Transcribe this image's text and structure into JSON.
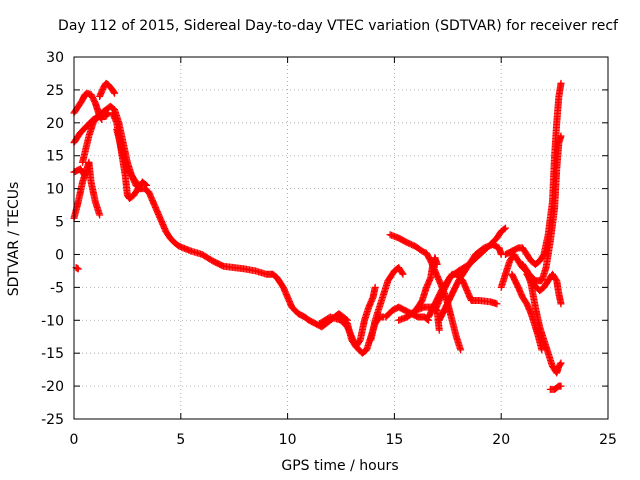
{
  "chart_data": {
    "type": "scatter",
    "title": "Day 112 of 2015, Sidereal Day-to-day VTEC variation (SDTVAR) for receiver recf",
    "xlabel": "GPS time / hours",
    "ylabel": "SDTVAR / TECUs",
    "xlim": [
      0,
      25
    ],
    "ylim": [
      -25,
      30
    ],
    "x_ticks": [
      0,
      5,
      10,
      15,
      20,
      25
    ],
    "y_ticks": [
      -25,
      -20,
      -15,
      -10,
      -5,
      0,
      5,
      10,
      15,
      20,
      25,
      30
    ],
    "grid": true,
    "marker": "+",
    "color": "#ff0000",
    "series": [
      {
        "name": "main",
        "points": [
          [
            0.1,
            -2
          ],
          [
            0.2,
            -2.2
          ]
        ]
      },
      {
        "name": "s1",
        "points": [
          [
            0,
            5.5
          ],
          [
            0.2,
            8
          ],
          [
            0.4,
            11
          ],
          [
            0.6,
            13
          ],
          [
            0.7,
            14
          ],
          [
            0.8,
            11
          ],
          [
            1.0,
            8
          ],
          [
            1.2,
            6
          ]
        ]
      },
      {
        "name": "s2",
        "points": [
          [
            0,
            12.5
          ],
          [
            0.3,
            13
          ],
          [
            0.5,
            12
          ]
        ]
      },
      {
        "name": "s3",
        "points": [
          [
            0,
            17
          ],
          [
            0.3,
            18.5
          ],
          [
            0.6,
            19.5
          ],
          [
            0.9,
            20.5
          ],
          [
            1.2,
            21
          ],
          [
            1.5,
            21
          ],
          [
            1.6,
            21.5
          ]
        ]
      },
      {
        "name": "s4",
        "points": [
          [
            0,
            21.5
          ],
          [
            0.2,
            22.5
          ],
          [
            0.4,
            23.5
          ],
          [
            0.5,
            24.2
          ],
          [
            0.6,
            24.5
          ],
          [
            0.8,
            24.3
          ],
          [
            1.0,
            23
          ],
          [
            1.1,
            22
          ],
          [
            1.2,
            21
          ],
          [
            1.3,
            20.5
          ]
        ]
      },
      {
        "name": "s5",
        "points": [
          [
            1.2,
            24
          ],
          [
            1.4,
            25.5
          ],
          [
            1.5,
            26
          ],
          [
            1.6,
            25.8
          ],
          [
            1.8,
            25
          ],
          [
            1.9,
            24.5
          ]
        ]
      },
      {
        "name": "s6",
        "points": [
          [
            0.4,
            14
          ],
          [
            0.7,
            18
          ],
          [
            0.9,
            20
          ],
          [
            1.1,
            21
          ],
          [
            1.3,
            21.5
          ],
          [
            1.5,
            22
          ],
          [
            1.7,
            22.5
          ],
          [
            1.9,
            22
          ],
          [
            2.1,
            20
          ],
          [
            2.3,
            17
          ],
          [
            2.5,
            14
          ],
          [
            2.7,
            12
          ],
          [
            2.9,
            10.5
          ],
          [
            3.1,
            10
          ],
          [
            3.3,
            10
          ],
          [
            3.5,
            9.5
          ],
          [
            3.7,
            8
          ],
          [
            3.9,
            6.5
          ],
          [
            4.1,
            5
          ],
          [
            4.3,
            3.5
          ],
          [
            4.5,
            2.5
          ],
          [
            4.7,
            1.8
          ],
          [
            4.9,
            1.3
          ],
          [
            5.1,
            1
          ],
          [
            5.5,
            0.5
          ],
          [
            6.0,
            0
          ],
          [
            6.5,
            -1
          ],
          [
            7.0,
            -1.8
          ],
          [
            7.5,
            -2
          ],
          [
            8.0,
            -2.2
          ],
          [
            8.5,
            -2.5
          ],
          [
            9.0,
            -3
          ],
          [
            9.3,
            -3
          ],
          [
            9.5,
            -3.5
          ],
          [
            9.8,
            -5
          ],
          [
            10.0,
            -6.5
          ],
          [
            10.2,
            -8
          ],
          [
            10.5,
            -9
          ],
          [
            10.8,
            -9.5
          ],
          [
            11.0,
            -10
          ],
          [
            11.3,
            -10.5
          ],
          [
            11.6,
            -11
          ],
          [
            11.8,
            -10.5
          ],
          [
            12.0,
            -10
          ],
          [
            12.2,
            -9.5
          ],
          [
            12.4,
            -9
          ],
          [
            12.6,
            -9.5
          ],
          [
            12.8,
            -10
          ]
        ]
      },
      {
        "name": "s7",
        "points": [
          [
            1.8,
            21.5
          ],
          [
            2.0,
            20
          ],
          [
            2.2,
            16
          ],
          [
            2.4,
            12
          ],
          [
            2.5,
            9
          ],
          [
            2.6,
            8.5
          ],
          [
            2.8,
            9
          ],
          [
            3.0,
            10
          ],
          [
            3.2,
            11
          ],
          [
            3.4,
            10.5
          ]
        ]
      },
      {
        "name": "s8",
        "points": [
          [
            2.0,
            19
          ],
          [
            2.3,
            15
          ],
          [
            2.5,
            13
          ],
          [
            2.7,
            12
          ],
          [
            2.9,
            11
          ],
          [
            3.1,
            10
          ]
        ]
      },
      {
        "name": "s9",
        "points": [
          [
            11.5,
            -10.5
          ],
          [
            12.0,
            -9.5
          ],
          [
            12.5,
            -10
          ],
          [
            12.8,
            -11
          ],
          [
            13.0,
            -12.5
          ],
          [
            13.2,
            -14
          ],
          [
            13.5,
            -15
          ],
          [
            13.7,
            -14.5
          ],
          [
            13.9,
            -12.5
          ],
          [
            14.1,
            -10.5
          ],
          [
            14.3,
            -9.5
          ],
          [
            14.5,
            -9.5
          ]
        ]
      },
      {
        "name": "s10",
        "points": [
          [
            12.5,
            -9.5
          ],
          [
            12.8,
            -10.5
          ],
          [
            13.0,
            -13
          ],
          [
            13.2,
            -14
          ],
          [
            13.4,
            -13
          ],
          [
            13.6,
            -10
          ],
          [
            13.8,
            -8
          ],
          [
            14.0,
            -6.5
          ],
          [
            14.1,
            -5
          ]
        ]
      },
      {
        "name": "s11",
        "points": [
          [
            13.9,
            -13
          ],
          [
            14.1,
            -10
          ],
          [
            14.4,
            -7
          ],
          [
            14.7,
            -4
          ],
          [
            15.0,
            -2.5
          ],
          [
            15.2,
            -2
          ],
          [
            15.4,
            -3
          ]
        ]
      },
      {
        "name": "s12",
        "points": [
          [
            14.6,
            -9.5
          ],
          [
            14.9,
            -8.5
          ],
          [
            15.2,
            -8
          ],
          [
            15.5,
            -8.5
          ],
          [
            15.8,
            -9
          ],
          [
            16.1,
            -9.5
          ],
          [
            16.4,
            -9.5
          ],
          [
            16.6,
            -10
          ]
        ]
      },
      {
        "name": "s13",
        "points": [
          [
            14.8,
            3
          ],
          [
            15.2,
            2.5
          ],
          [
            15.6,
            1.8
          ],
          [
            16.0,
            1.2
          ],
          [
            16.3,
            0.5
          ],
          [
            16.5,
            0.2
          ],
          [
            16.7,
            -1
          ],
          [
            16.9,
            -2.5
          ],
          [
            17.1,
            -4
          ],
          [
            17.3,
            -5.5
          ],
          [
            17.5,
            -7.5
          ],
          [
            17.7,
            -10
          ],
          [
            17.9,
            -12.5
          ],
          [
            18.1,
            -14.5
          ]
        ]
      },
      {
        "name": "s14",
        "points": [
          [
            15.6,
            -9.5
          ],
          [
            16.0,
            -8.5
          ],
          [
            16.3,
            -7
          ],
          [
            16.5,
            -5
          ],
          [
            16.7,
            -3.5
          ],
          [
            16.8,
            -1.5
          ],
          [
            16.9,
            -0.5
          ],
          [
            17.0,
            -1.5
          ]
        ]
      },
      {
        "name": "s15",
        "points": [
          [
            15.2,
            -10
          ],
          [
            15.6,
            -9.5
          ],
          [
            16.0,
            -8.5
          ],
          [
            16.4,
            -8
          ],
          [
            16.8,
            -8
          ],
          [
            17.0,
            -8.5
          ],
          [
            17.1,
            -11.5
          ]
        ]
      },
      {
        "name": "s16",
        "points": [
          [
            16.6,
            -9.5
          ],
          [
            16.9,
            -7.5
          ],
          [
            17.2,
            -5.5
          ],
          [
            17.5,
            -4
          ],
          [
            17.7,
            -3
          ],
          [
            17.9,
            -3
          ],
          [
            18.2,
            -4
          ],
          [
            18.4,
            -5.5
          ],
          [
            18.6,
            -7
          ],
          [
            19.0,
            -7
          ],
          [
            19.5,
            -7.2
          ],
          [
            19.8,
            -7.5
          ]
        ]
      },
      {
        "name": "s17",
        "points": [
          [
            16.9,
            -8.5
          ],
          [
            17.3,
            -5.5
          ],
          [
            17.6,
            -3.5
          ],
          [
            18.0,
            -2.5
          ],
          [
            18.5,
            -1.5
          ],
          [
            19.0,
            0
          ],
          [
            19.5,
            1.5
          ],
          [
            19.8,
            2.5
          ],
          [
            20.0,
            3.5
          ],
          [
            20.2,
            4
          ]
        ]
      },
      {
        "name": "s18",
        "points": [
          [
            17.1,
            -10
          ],
          [
            17.4,
            -8
          ],
          [
            17.7,
            -6
          ],
          [
            18.0,
            -4
          ],
          [
            18.4,
            -2
          ],
          [
            18.8,
            0
          ],
          [
            19.2,
            1
          ],
          [
            19.6,
            1.5
          ],
          [
            19.9,
            1
          ],
          [
            20.0,
            0
          ]
        ]
      },
      {
        "name": "s19",
        "points": [
          [
            20.0,
            -5
          ],
          [
            20.2,
            -3
          ],
          [
            20.4,
            -1
          ],
          [
            20.6,
            0
          ],
          [
            20.8,
            -1
          ],
          [
            21.0,
            -2
          ],
          [
            21.2,
            -2.5
          ],
          [
            21.4,
            -4.5
          ],
          [
            21.6,
            -8
          ],
          [
            21.8,
            -11
          ],
          [
            22.0,
            -13
          ],
          [
            22.2,
            -15
          ],
          [
            22.4,
            -17
          ],
          [
            22.6,
            -18
          ],
          [
            22.7,
            -17
          ],
          [
            22.8,
            -16.5
          ]
        ]
      },
      {
        "name": "s20",
        "points": [
          [
            20.2,
            0
          ],
          [
            20.5,
            0.5
          ],
          [
            20.8,
            1
          ],
          [
            21.0,
            1
          ],
          [
            21.2,
            0
          ],
          [
            21.4,
            -1
          ],
          [
            21.6,
            -1.5
          ],
          [
            21.8,
            -1
          ],
          [
            22.0,
            0
          ],
          [
            22.2,
            3
          ],
          [
            22.4,
            8
          ],
          [
            22.5,
            15
          ],
          [
            22.6,
            20
          ],
          [
            22.7,
            24
          ],
          [
            22.8,
            26
          ]
        ]
      },
      {
        "name": "s21",
        "points": [
          [
            20.5,
            -3
          ],
          [
            20.8,
            -5
          ],
          [
            21.0,
            -6.5
          ],
          [
            21.2,
            -7.5
          ],
          [
            21.4,
            -9
          ],
          [
            21.6,
            -11
          ],
          [
            21.7,
            -12
          ],
          [
            21.9,
            -14.5
          ]
        ]
      },
      {
        "name": "s22",
        "points": [
          [
            21.0,
            -1.5
          ],
          [
            21.3,
            -3
          ],
          [
            21.6,
            -4
          ],
          [
            21.9,
            -4
          ],
          [
            22.1,
            -2
          ],
          [
            22.3,
            2
          ],
          [
            22.5,
            7
          ],
          [
            22.6,
            13
          ],
          [
            22.7,
            17
          ],
          [
            22.8,
            18
          ]
        ]
      },
      {
        "name": "s23",
        "points": [
          [
            21.2,
            -3
          ],
          [
            21.5,
            -4.5
          ],
          [
            21.8,
            -5.5
          ],
          [
            22.0,
            -5
          ],
          [
            22.2,
            -4
          ],
          [
            22.4,
            -3
          ],
          [
            22.6,
            -4
          ],
          [
            22.7,
            -6
          ],
          [
            22.8,
            -7.5
          ]
        ]
      },
      {
        "name": "s24",
        "points": [
          [
            22.3,
            -20.5
          ],
          [
            22.5,
            -20.5
          ],
          [
            22.7,
            -20
          ],
          [
            22.8,
            -20
          ]
        ]
      }
    ]
  }
}
